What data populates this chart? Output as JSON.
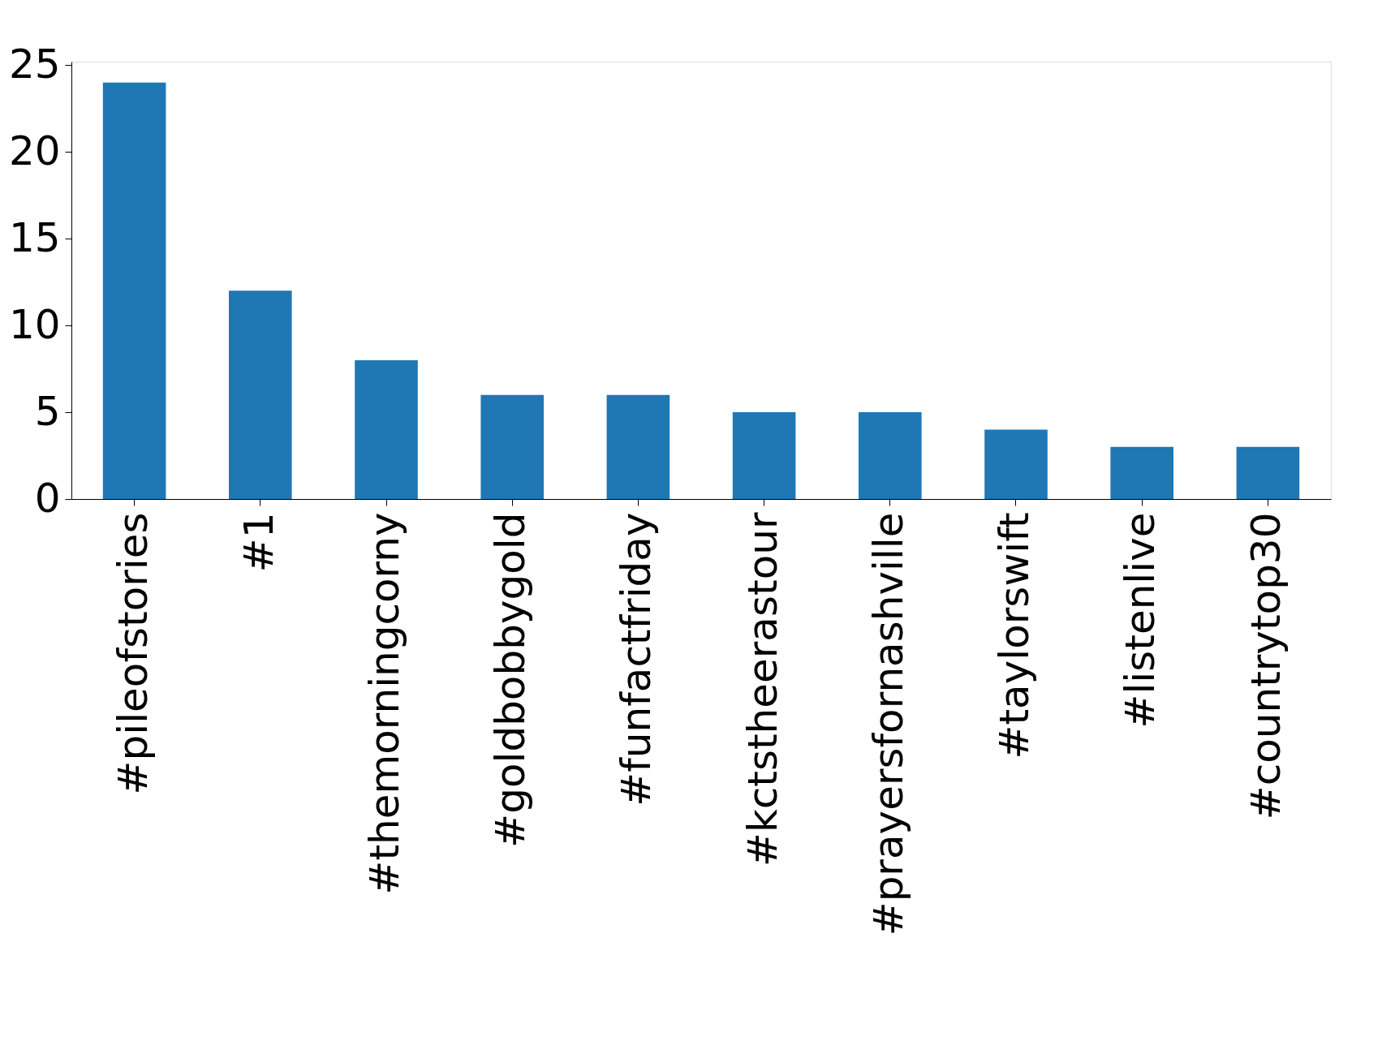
{
  "chart_data": {
    "type": "bar",
    "categories": [
      "#pileofstories",
      "#1",
      "#themorningcorny",
      "#goldbobbygold",
      "#funfactfriday",
      "#kctstheerastour",
      "#prayersfornashville",
      "#taylorswift",
      "#listenlive",
      "#countrytop30"
    ],
    "values": [
      24,
      12,
      8,
      6,
      6,
      5,
      5,
      4,
      3,
      3
    ],
    "color": "#1f77b4",
    "ylim": [
      0,
      25.2
    ],
    "yticks": [
      0,
      5,
      10,
      15,
      20,
      25
    ],
    "grid": false
  }
}
